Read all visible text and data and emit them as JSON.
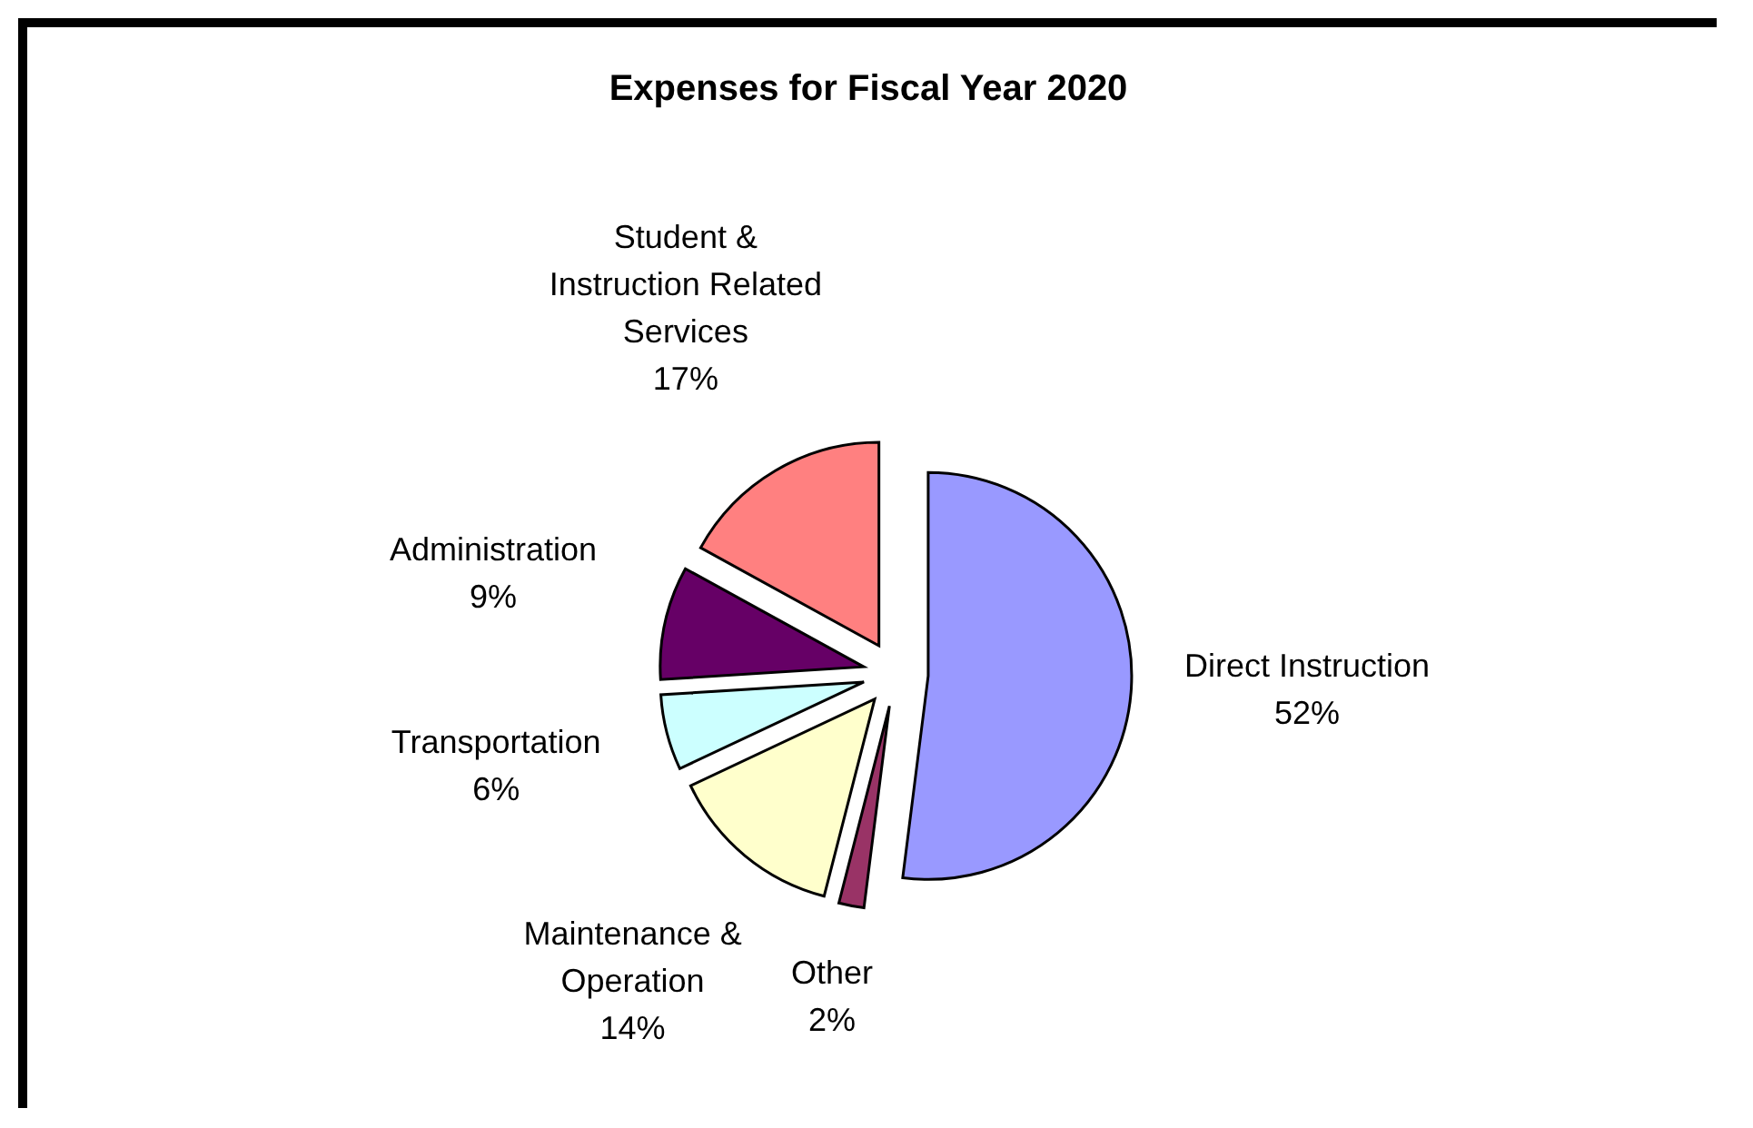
{
  "chart_data": {
    "type": "pie",
    "title": "Expenses for Fiscal Year 2020",
    "categories": [
      "Direct Instruction",
      "Other",
      "Maintenance & Operation",
      "Transportation",
      "Administration",
      "Student & Instruction Related Services"
    ],
    "values": [
      52,
      2,
      14,
      6,
      9,
      17
    ],
    "value_labels": [
      "52%",
      "2%",
      "14%",
      "6%",
      "9%",
      "17%"
    ],
    "colors": [
      "#9999ff",
      "#993366",
      "#ffffcc",
      "#ccffff",
      "#660066",
      "#ff8080"
    ],
    "legend": false
  }
}
